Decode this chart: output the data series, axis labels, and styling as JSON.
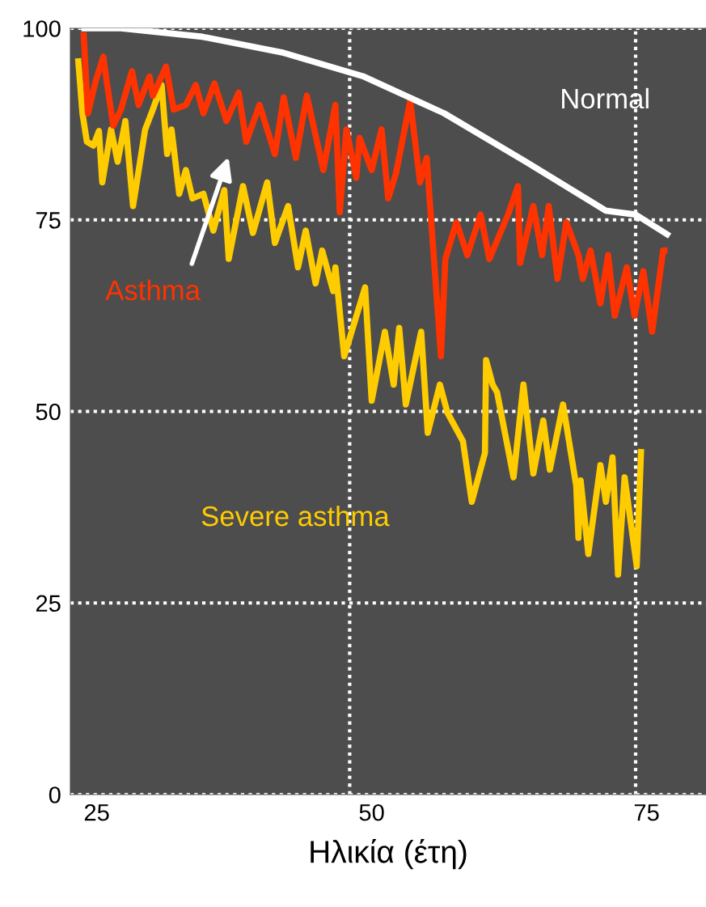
{
  "chart_data": {
    "type": "line",
    "xlabel": "Ηλικία (έτη)",
    "xlim": [
      22.6,
      80.4
    ],
    "ylim": [
      0,
      100
    ],
    "xticks": [
      25,
      50,
      75
    ],
    "yticks": [
      0,
      25,
      50,
      75,
      100
    ],
    "grid": "y",
    "legend": false,
    "marker": "none",
    "line_style": "solid",
    "ref_lines": [
      {
        "axis": "x",
        "value": 48,
        "color": "#ffffff",
        "line_style": "dotted"
      },
      {
        "axis": "x",
        "value": 74,
        "color": "#ffffff",
        "line_style": "dotted"
      }
    ],
    "series": [
      {
        "name": "Normal",
        "color": "#ffffff",
        "x": [
          23.6,
          27.2,
          34.6,
          42.0,
          49.3,
          56.6,
          64.0,
          71.3,
          74.0,
          77.1
        ],
        "values": [
          100,
          100,
          98.9,
          96.8,
          93.7,
          88.9,
          82.6,
          76.2,
          75.7,
          72.9
        ]
      },
      {
        "name": "Asthma",
        "color": "#ff3300",
        "x": [
          23.8,
          24.2,
          24.9,
          25.6,
          25.9,
          26.5,
          27.2,
          28.2,
          28.8,
          29.8,
          30.1,
          31.3,
          32.0,
          33.1,
          34.0,
          34.7,
          35.7,
          36.8,
          37.9,
          38.6,
          39.8,
          41.2,
          42.0,
          43.1,
          44.1,
          45.6,
          46.7,
          47.1,
          47.7,
          48.6,
          48.9,
          50.0,
          50.9,
          51.5,
          52.2,
          53.5,
          54.4,
          55.0,
          56.3,
          56.7,
          57.7,
          58.7,
          59.9,
          60.7,
          62.4,
          63.3,
          63.5,
          64.7,
          65.5,
          66.1,
          66.9,
          67.7,
          68.8,
          69.2,
          69.9,
          70.8,
          71.5,
          72.1,
          73.2,
          73.9,
          74.7,
          75.5,
          76.5,
          76.9
        ],
        "values": [
          99.5,
          88.9,
          93.1,
          96.3,
          93.1,
          87.3,
          89.4,
          94.4,
          90.0,
          93.7,
          91.2,
          95.0,
          89.4,
          90.0,
          92.6,
          88.9,
          92.8,
          87.9,
          91.6,
          85.2,
          90.0,
          83.6,
          91.0,
          83.1,
          91.2,
          81.5,
          90.0,
          76.0,
          86.8,
          80.5,
          85.7,
          81.5,
          86.8,
          77.8,
          81.0,
          90.5,
          79.9,
          83.1,
          57.2,
          69.9,
          74.7,
          70.4,
          75.7,
          69.9,
          75.7,
          79.4,
          69.4,
          76.8,
          70.4,
          76.8,
          67.3,
          74.7,
          70.4,
          67.3,
          71.0,
          64.1,
          70.4,
          62.5,
          68.8,
          62.5,
          68.3,
          60.4,
          71.0,
          71.0
        ]
      },
      {
        "name": "Severe asthma",
        "color": "#ffcc00",
        "x": [
          23.3,
          23.7,
          24.1,
          24.7,
          25.2,
          25.5,
          26.3,
          26.9,
          27.6,
          28.3,
          29.4,
          30.1,
          30.9,
          31.4,
          31.8,
          32.5,
          33.1,
          33.7,
          34.7,
          35.6,
          36.6,
          37.0,
          38.3,
          39.2,
          40.5,
          41.2,
          42.4,
          43.3,
          44.0,
          44.9,
          45.5,
          46.5,
          46.7,
          47.5,
          49.4,
          50.0,
          51.2,
          52.0,
          52.5,
          53.1,
          54.5,
          55.1,
          56.2,
          56.9,
          58.3,
          59.1,
          60.3,
          60.4,
          61.0,
          61.4,
          62.9,
          63.8,
          64.7,
          65.6,
          66.2,
          67.4,
          68.6,
          68.8,
          69.0,
          69.7,
          70.8,
          71.3,
          71.9,
          72.4,
          73.0,
          74.1,
          74.5
        ],
        "values": [
          96.1,
          88.9,
          85.2,
          84.7,
          86.6,
          79.9,
          86.8,
          82.6,
          87.9,
          76.8,
          86.8,
          89.4,
          92.6,
          83.6,
          86.8,
          78.4,
          81.5,
          77.8,
          78.4,
          73.6,
          78.9,
          69.9,
          79.4,
          73.3,
          79.9,
          72.0,
          76.8,
          68.8,
          73.6,
          66.7,
          71.0,
          65.7,
          68.8,
          57.2,
          66.2,
          51.4,
          60.4,
          53.5,
          60.9,
          50.9,
          60.4,
          47.2,
          53.5,
          49.8,
          46.1,
          38.2,
          44.6,
          56.7,
          53.5,
          52.5,
          41.4,
          53.5,
          41.9,
          48.8,
          42.4,
          50.9,
          40.3,
          33.5,
          41.0,
          31.4,
          43.0,
          38.2,
          44.0,
          28.7,
          41.4,
          29.8,
          45.1
        ]
      }
    ]
  }
}
